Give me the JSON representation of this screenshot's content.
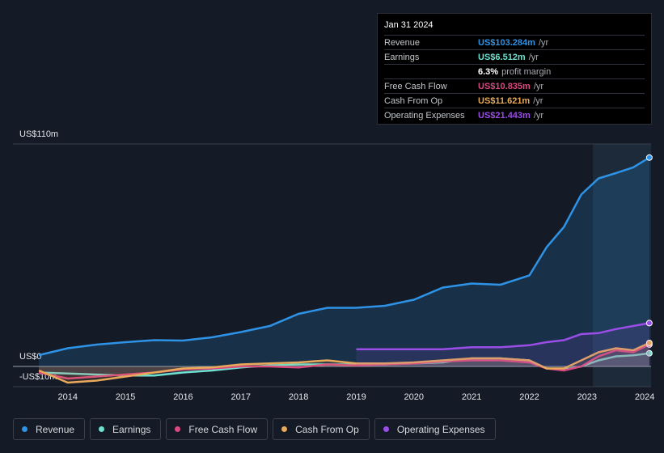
{
  "chart_data": {
    "type": "line",
    "x": [
      2013.5,
      2014,
      2014.5,
      2015,
      2015.5,
      2016,
      2016.5,
      2017,
      2017.5,
      2018,
      2018.5,
      2019,
      2019.5,
      2020,
      2020.5,
      2021,
      2021.5,
      2022,
      2022.3,
      2022.6,
      2022.9,
      2023.2,
      2023.5,
      2023.8,
      2024.08
    ],
    "xlim": [
      2013.05,
      2024.11
    ],
    "xticks": [
      2014,
      2015,
      2016,
      2017,
      2018,
      2019,
      2020,
      2021,
      2022,
      2023,
      2024
    ],
    "ylim": [
      -10,
      110
    ],
    "yticks": [
      {
        "value": -10,
        "label": "-US$10m"
      },
      {
        "value": 0,
        "label": "US$0"
      },
      {
        "value": 110,
        "label": "US$110m"
      }
    ],
    "series": [
      {
        "name": "Revenue",
        "color": "#2e93e6",
        "values": [
          5.6,
          9,
          10.8,
          12,
          13,
          12.8,
          14.4,
          17,
          20,
          26,
          29,
          29,
          30,
          33,
          39,
          41,
          40.4,
          45,
          59,
          69,
          85,
          93,
          95.6,
          98.4,
          103.284
        ]
      },
      {
        "name": "Earnings",
        "color": "#6fe0cf",
        "values": [
          -3,
          -3.5,
          -4,
          -4.5,
          -4.5,
          -3,
          -2,
          -0.5,
          0.5,
          1,
          1,
          1,
          1,
          1.5,
          2,
          4,
          4,
          3,
          -1,
          -1.5,
          0,
          3,
          5,
          5.5,
          6.512
        ]
      },
      {
        "name": "Free Cash Flow",
        "color": "#d9487e",
        "values": [
          -3,
          -6,
          -5,
          -4,
          -3,
          -1.5,
          -1,
          0,
          0,
          -0.5,
          1,
          0.5,
          1,
          1.5,
          2.5,
          3,
          3,
          2,
          -1,
          -2,
          0,
          5,
          8,
          7,
          10.835
        ]
      },
      {
        "name": "Cash From Op",
        "color": "#e8a95a",
        "values": [
          -2,
          -8,
          -7,
          -5,
          -3,
          -1,
          -0.5,
          1,
          1.5,
          2,
          3,
          1.5,
          1.5,
          2,
          3,
          4,
          4,
          3,
          -1,
          -1,
          3,
          7,
          9,
          8,
          11.621
        ]
      },
      {
        "name": "Operating Expenses",
        "color": "#9b4de8",
        "values": [
          null,
          null,
          null,
          null,
          null,
          null,
          null,
          null,
          null,
          null,
          null,
          8.5,
          8.5,
          8.5,
          8.5,
          9.5,
          9.5,
          10.5,
          12,
          13,
          16,
          16.5,
          18.5,
          20,
          21.443
        ]
      }
    ]
  },
  "tooltip": {
    "date": "Jan 31 2024",
    "unit": "/yr",
    "rows": [
      {
        "label": "Revenue",
        "value": "US$103.284m"
      },
      {
        "label": "Earnings",
        "value": "US$6.512m"
      },
      {
        "label": "Free Cash Flow",
        "value": "US$10.835m"
      },
      {
        "label": "Cash From Op",
        "value": "US$11.621m"
      },
      {
        "label": "Operating Expenses",
        "value": "US$21.443m"
      }
    ],
    "margin": {
      "value": "6.3%",
      "label": "profit margin"
    }
  }
}
